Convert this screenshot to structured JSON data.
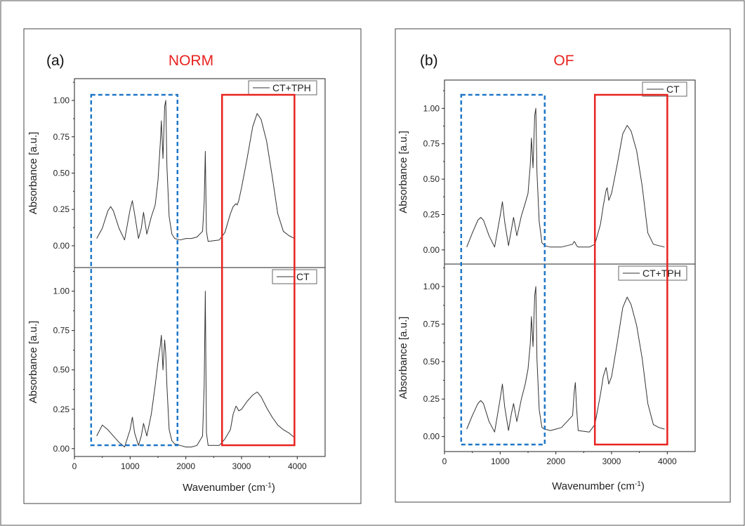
{
  "chart_data": [
    {
      "type": "line",
      "panel_label": "(a)",
      "title": "NORM",
      "xlabel": "Wavenumber (cm",
      "xlabel_sup": "-1",
      "xlabel_end": ")",
      "xlim": [
        0,
        4500
      ],
      "x_ticks": [
        "0",
        "1000",
        "2000",
        "3000",
        "4000"
      ],
      "y_ticks": [
        "0.00",
        "0.25",
        "0.50",
        "0.75",
        "1.00"
      ],
      "highlight_regions": [
        {
          "x": [
            300,
            1850
          ],
          "style": "dashed",
          "color": "#1f77c8"
        },
        {
          "x": [
            2650,
            3950
          ],
          "style": "solid",
          "color": "#e8231f"
        }
      ],
      "subplots": [
        {
          "ylabel": "Absorbance [a.u.]",
          "ylim": [
            -0.15,
            1.15
          ],
          "legend": "CT+TPH",
          "legend_position": "top-right",
          "series": [
            {
              "name": "CT+TPH",
              "x": [
                400,
                500,
                600,
                650,
                700,
                800,
                900,
                1000,
                1040,
                1080,
                1150,
                1200,
                1240,
                1300,
                1380,
                1450,
                1500,
                1540,
                1560,
                1590,
                1620,
                1640,
                1660,
                1700,
                1750,
                1800,
                1900,
                2000,
                2100,
                2200,
                2300,
                2330,
                2350,
                2370,
                2400,
                2600,
                2700,
                2800,
                2850,
                2900,
                2920,
                2950,
                3000,
                3100,
                3200,
                3280,
                3350,
                3450,
                3550,
                3650,
                3750,
                3850,
                3950
              ],
              "y": [
                0.05,
                0.12,
                0.24,
                0.27,
                0.24,
                0.12,
                0.04,
                0.25,
                0.31,
                0.22,
                0.05,
                0.12,
                0.23,
                0.08,
                0.2,
                0.28,
                0.45,
                0.7,
                0.86,
                0.6,
                0.96,
                1.0,
                0.55,
                0.2,
                0.08,
                0.05,
                0.04,
                0.05,
                0.05,
                0.06,
                0.1,
                0.3,
                0.65,
                0.1,
                0.03,
                0.04,
                0.09,
                0.22,
                0.27,
                0.29,
                0.28,
                0.31,
                0.4,
                0.6,
                0.82,
                0.91,
                0.87,
                0.72,
                0.48,
                0.22,
                0.1,
                0.07,
                0.05
              ]
            }
          ]
        },
        {
          "ylabel": "Absorbance [a.u.]",
          "ylim": [
            -0.05,
            1.15
          ],
          "legend": "CT",
          "legend_position": "top-right",
          "series": [
            {
              "name": "CT",
              "x": [
                400,
                500,
                600,
                650,
                700,
                800,
                900,
                1000,
                1040,
                1080,
                1150,
                1200,
                1240,
                1300,
                1380,
                1450,
                1500,
                1540,
                1560,
                1590,
                1620,
                1640,
                1660,
                1700,
                1750,
                1800,
                1900,
                2000,
                2100,
                2200,
                2300,
                2330,
                2350,
                2370,
                2400,
                2600,
                2700,
                2800,
                2850,
                2900,
                2920,
                2950,
                3000,
                3100,
                3200,
                3280,
                3350,
                3450,
                3550,
                3650,
                3750,
                3850,
                3950
              ],
              "y": [
                0.08,
                0.15,
                0.12,
                0.1,
                0.08,
                0.04,
                0.01,
                0.12,
                0.2,
                0.1,
                0.02,
                0.08,
                0.16,
                0.08,
                0.22,
                0.4,
                0.55,
                0.65,
                0.72,
                0.5,
                0.69,
                0.6,
                0.4,
                0.12,
                0.05,
                0.03,
                0.02,
                0.01,
                0.01,
                0.02,
                0.08,
                0.4,
                1.0,
                0.1,
                0.02,
                0.02,
                0.06,
                0.12,
                0.22,
                0.27,
                0.26,
                0.24,
                0.25,
                0.3,
                0.34,
                0.36,
                0.33,
                0.26,
                0.2,
                0.15,
                0.12,
                0.1,
                0.07
              ]
            }
          ]
        }
      ]
    },
    {
      "type": "line",
      "panel_label": "(b)",
      "title": "OF",
      "xlabel": "Wavenumber (cm",
      "xlabel_sup": "-1",
      "xlabel_end": ")",
      "xlim": [
        0,
        4500
      ],
      "x_ticks": [
        "0",
        "1000",
        "2000",
        "3000",
        "4000"
      ],
      "y_ticks": [
        "0.00",
        "0.25",
        "0.50",
        "0.75",
        "1.00"
      ],
      "highlight_regions": [
        {
          "x": [
            300,
            1800
          ],
          "style": "dashed",
          "color": "#1f77c8"
        },
        {
          "x": [
            2700,
            4000
          ],
          "style": "solid",
          "color": "#e8231f"
        }
      ],
      "subplots": [
        {
          "ylabel": "Absorbance [a.u.]",
          "ylim": [
            -0.1,
            1.2
          ],
          "legend": "CT",
          "legend_position": "top-right",
          "series": [
            {
              "name": "CT",
              "x": [
                400,
                500,
                600,
                650,
                700,
                800,
                900,
                1000,
                1040,
                1080,
                1150,
                1200,
                1240,
                1300,
                1380,
                1450,
                1500,
                1540,
                1560,
                1590,
                1620,
                1640,
                1660,
                1700,
                1750,
                1800,
                1900,
                2000,
                2100,
                2200,
                2300,
                2330,
                2350,
                2370,
                2400,
                2600,
                2700,
                2800,
                2850,
                2900,
                2920,
                2950,
                3000,
                3100,
                3200,
                3280,
                3350,
                3450,
                3550,
                3650,
                3750,
                3850,
                3950
              ],
              "y": [
                0.02,
                0.12,
                0.21,
                0.23,
                0.21,
                0.1,
                0.02,
                0.24,
                0.34,
                0.2,
                0.03,
                0.14,
                0.23,
                0.1,
                0.24,
                0.33,
                0.4,
                0.6,
                0.79,
                0.58,
                0.95,
                1.0,
                0.55,
                0.2,
                0.05,
                0.03,
                0.02,
                0.02,
                0.02,
                0.03,
                0.04,
                0.06,
                0.05,
                0.03,
                0.02,
                0.02,
                0.04,
                0.18,
                0.31,
                0.42,
                0.44,
                0.35,
                0.4,
                0.6,
                0.82,
                0.88,
                0.84,
                0.7,
                0.45,
                0.12,
                0.04,
                0.03,
                0.02
              ]
            }
          ]
        },
        {
          "ylabel": "Absorbance [a.u.]",
          "ylim": [
            -0.1,
            1.15
          ],
          "legend": "CT+TPH",
          "legend_position": "top-right",
          "series": [
            {
              "name": "CT+TPH",
              "x": [
                400,
                500,
                600,
                650,
                700,
                800,
                900,
                1000,
                1040,
                1080,
                1150,
                1200,
                1240,
                1300,
                1380,
                1450,
                1500,
                1540,
                1560,
                1590,
                1620,
                1640,
                1660,
                1700,
                1750,
                1800,
                1900,
                2000,
                2100,
                2200,
                2300,
                2330,
                2350,
                2370,
                2400,
                2600,
                2700,
                2800,
                2850,
                2900,
                2920,
                2950,
                3000,
                3100,
                3200,
                3280,
                3350,
                3450,
                3550,
                3650,
                3750,
                3850,
                3950
              ],
              "y": [
                0.05,
                0.14,
                0.22,
                0.24,
                0.22,
                0.1,
                0.03,
                0.25,
                0.35,
                0.2,
                0.04,
                0.15,
                0.22,
                0.1,
                0.25,
                0.35,
                0.45,
                0.62,
                0.8,
                0.6,
                0.94,
                1.0,
                0.52,
                0.18,
                0.06,
                0.05,
                0.04,
                0.05,
                0.06,
                0.1,
                0.14,
                0.3,
                0.36,
                0.2,
                0.04,
                0.03,
                0.08,
                0.28,
                0.4,
                0.46,
                0.42,
                0.35,
                0.4,
                0.62,
                0.86,
                0.93,
                0.88,
                0.74,
                0.52,
                0.22,
                0.08,
                0.06,
                0.05
              ]
            }
          ]
        }
      ]
    }
  ]
}
